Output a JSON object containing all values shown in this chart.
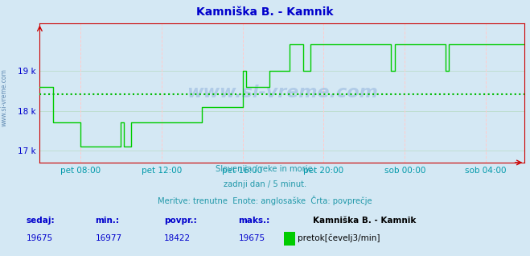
{
  "title": "Kamniška B. - Kamnik",
  "title_color": "#0000cc",
  "bg_color": "#d4e8f4",
  "plot_bg_color": "#d4e8f4",
  "line_color": "#00cc00",
  "avg_line_color": "#00bb00",
  "avg_value": 18422,
  "ymin": 16700,
  "ymax": 20200,
  "yticks": [
    17000,
    18000,
    19000
  ],
  "ytick_labels": [
    "17 k",
    "18 k",
    "19 k"
  ],
  "xtick_color": "#0099aa",
  "ytick_color": "#0000cc",
  "grid_h_color": "#bbddcc",
  "grid_v_color": "#ffcccc",
  "axis_color": "#cc0000",
  "xtick_positions": [
    24,
    72,
    120,
    168,
    216,
    264
  ],
  "xtick_labels": [
    "pet 08:00",
    "pet 12:00",
    "pet 16:00",
    "pet 20:00",
    "sob 00:00",
    "sob 04:00"
  ],
  "sedaj": 19675,
  "min_val": 16977,
  "povpr": 18422,
  "maks": 19675,
  "subtitle1": "Slovenija / reke in morje.",
  "subtitle2": "zadnji dan / 5 minut.",
  "subtitle3": "Meritve: trenutne  Enote: anglosaške  Črta: povprečje",
  "legend_label": "pretok[čevelj3/min]",
  "watermark": "www.si-vreme.com",
  "flow_data": [
    18600,
    18600,
    18600,
    18600,
    18600,
    18600,
    18600,
    18600,
    17700,
    17700,
    17700,
    17700,
    17700,
    17700,
    17700,
    17700,
    17700,
    17700,
    17700,
    17700,
    17700,
    17700,
    17700,
    17700,
    17100,
    17100,
    17100,
    17100,
    17100,
    17100,
    17100,
    17100,
    17100,
    17100,
    17100,
    17100,
    17100,
    17100,
    17100,
    17100,
    17100,
    17100,
    17100,
    17100,
    17100,
    17100,
    17100,
    17100,
    17700,
    17700,
    17100,
    17100,
    17100,
    17100,
    17700,
    17700,
    17700,
    17700,
    17700,
    17700,
    17700,
    17700,
    17700,
    17700,
    17700,
    17700,
    17700,
    17700,
    17700,
    17700,
    17700,
    17700,
    17700,
    17700,
    17700,
    17700,
    17700,
    17700,
    17700,
    17700,
    17700,
    17700,
    17700,
    17700,
    17700,
    17700,
    17700,
    17700,
    17700,
    17700,
    17700,
    17700,
    17700,
    17700,
    17700,
    17700,
    18100,
    18100,
    18100,
    18100,
    18100,
    18100,
    18100,
    18100,
    18100,
    18100,
    18100,
    18100,
    18100,
    18100,
    18100,
    18100,
    18100,
    18100,
    18100,
    18100,
    18100,
    18100,
    18100,
    18100,
    19000,
    19000,
    18600,
    18600,
    18600,
    18600,
    18600,
    18600,
    18600,
    18600,
    18600,
    18600,
    18600,
    18600,
    18600,
    18600,
    19000,
    19000,
    19000,
    19000,
    19000,
    19000,
    19000,
    19000,
    19000,
    19000,
    19000,
    19000,
    19675,
    19675,
    19675,
    19675,
    19675,
    19675,
    19675,
    19675,
    19000,
    19000,
    19000,
    19000,
    19675,
    19675,
    19675,
    19675,
    19675,
    19675,
    19675,
    19675,
    19675,
    19675,
    19675,
    19675,
    19675,
    19675,
    19675,
    19675,
    19675,
    19675,
    19675,
    19675,
    19675,
    19675,
    19675,
    19675,
    19675,
    19675,
    19675,
    19675,
    19675,
    19675,
    19675,
    19675,
    19675,
    19675,
    19675,
    19675,
    19675,
    19675,
    19675,
    19675,
    19675,
    19675,
    19675,
    19675,
    19675,
    19675,
    19675,
    19675,
    19000,
    19000,
    19675,
    19675,
    19675,
    19675,
    19675,
    19675,
    19675,
    19675,
    19675,
    19675,
    19675,
    19675,
    19675,
    19675,
    19675,
    19675,
    19675,
    19675,
    19675,
    19675,
    19675,
    19675,
    19675,
    19675,
    19675,
    19675,
    19675,
    19675,
    19675,
    19675,
    19000,
    19000,
    19675,
    19675,
    19675,
    19675,
    19675,
    19675,
    19675,
    19675,
    19675,
    19675,
    19675,
    19675,
    19675,
    19675,
    19675,
    19675,
    19675,
    19675,
    19675,
    19675,
    19675,
    19675,
    19675,
    19675,
    19675,
    19675,
    19675,
    19675,
    19675,
    19675,
    19675,
    19675,
    19675,
    19675,
    19675,
    19675,
    19675,
    19675,
    19675,
    19675,
    19675,
    19675,
    19675,
    19675,
    19675,
    19675
  ]
}
